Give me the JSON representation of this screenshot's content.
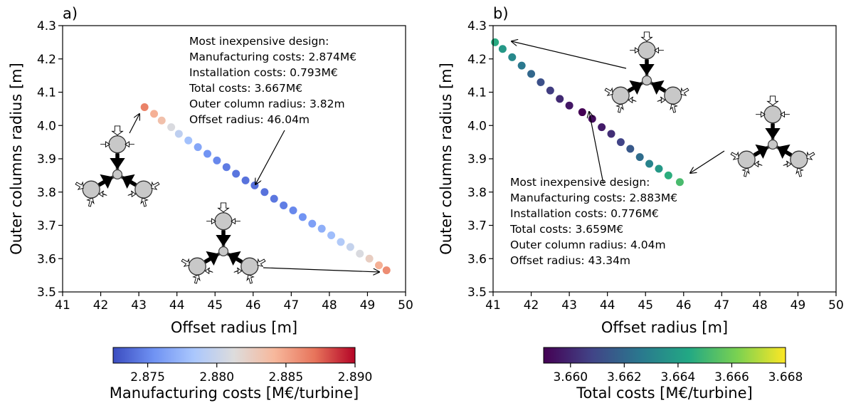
{
  "figure": {
    "panels": [
      {
        "label": "a)",
        "annotation_lines": [
          "Most inexpensive design:",
          "Manufacturing costs: 2.874M€",
          "Installation costs: 0.793M€",
          "Total costs: 3.667M€",
          "Outer column radius: 3.82m",
          "Offset radius: 46.04m"
        ]
      },
      {
        "label": "b)",
        "annotation_lines": [
          "Most inexpensive design:",
          "Manufacturing costs: 2.883M€",
          "Installation costs: 0.776M€",
          "Total costs: 3.659M€",
          "Outer column radius: 4.04m",
          "Offset radius: 43.34m"
        ]
      }
    ]
  },
  "chart_data": [
    {
      "type": "scatter",
      "title": "",
      "xlabel": "Offset radius [m]",
      "ylabel": "Outer columns radius [m]",
      "xlim": [
        41,
        50
      ],
      "ylim": [
        3.5,
        4.3
      ],
      "xticks": [
        "41",
        "42",
        "43",
        "44",
        "45",
        "46",
        "47",
        "48",
        "49",
        "50"
      ],
      "yticks": [
        "3.5",
        "3.6",
        "3.7",
        "3.8",
        "3.9",
        "4.0",
        "4.1",
        "4.2",
        "4.3"
      ],
      "grid": false,
      "colormap": "coolwarm",
      "colorbar": {
        "label": "Manufacturing costs [M€/turbine]",
        "range": [
          2.8725,
          2.89
        ],
        "ticks": [
          "2.875",
          "2.880",
          "2.885",
          "2.890"
        ],
        "tick_values": [
          2.875,
          2.88,
          2.885,
          2.89
        ],
        "colors": [
          "#3b4cc0",
          "#6f92f3",
          "#aac7fd",
          "#dddcdc",
          "#f7b89c",
          "#e7745b",
          "#b40426"
        ]
      },
      "x": [
        43.15,
        43.4,
        43.6,
        43.85,
        44.05,
        44.3,
        44.55,
        44.8,
        45.05,
        45.3,
        45.55,
        45.8,
        46.04,
        46.3,
        46.55,
        46.8,
        47.05,
        47.3,
        47.55,
        47.8,
        48.05,
        48.3,
        48.55,
        48.8,
        49.05,
        49.3,
        49.5
      ],
      "y": [
        4.055,
        4.035,
        4.015,
        3.995,
        3.975,
        3.955,
        3.935,
        3.915,
        3.895,
        3.875,
        3.855,
        3.835,
        3.82,
        3.8,
        3.78,
        3.76,
        3.745,
        3.725,
        3.705,
        3.69,
        3.67,
        3.65,
        3.635,
        3.615,
        3.6,
        3.58,
        3.565
      ],
      "values": [
        2.8865,
        2.8845,
        2.8835,
        2.881,
        2.8795,
        2.878,
        2.8765,
        2.8755,
        2.875,
        2.8745,
        2.8742,
        2.8741,
        2.874,
        2.8741,
        2.8743,
        2.8746,
        2.875,
        2.8755,
        2.8762,
        2.877,
        2.8778,
        2.8788,
        2.8798,
        2.881,
        2.8825,
        2.8845,
        2.886
      ]
    },
    {
      "type": "scatter",
      "title": "",
      "xlabel": "Offset radius [m]",
      "ylabel": "Outer columns radius [m]",
      "xlim": [
        41,
        50
      ],
      "ylim": [
        3.5,
        4.3
      ],
      "xticks": [
        "41",
        "42",
        "43",
        "44",
        "45",
        "46",
        "47",
        "48",
        "49",
        "50"
      ],
      "yticks": [
        "3.5",
        "3.6",
        "3.7",
        "3.8",
        "3.9",
        "4.0",
        "4.1",
        "4.2",
        "4.3"
      ],
      "grid": false,
      "colormap": "viridis",
      "colorbar": {
        "label": "Total costs [M€/turbine]",
        "range": [
          3.659,
          3.668
        ],
        "ticks": [
          "3.660",
          "3.662",
          "3.664",
          "3.666",
          "3.668"
        ],
        "tick_values": [
          3.66,
          3.662,
          3.664,
          3.666,
          3.668
        ],
        "colors": [
          "#440154",
          "#414487",
          "#2a788e",
          "#22a884",
          "#7ad151",
          "#fde725"
        ]
      },
      "x": [
        41.05,
        41.25,
        41.5,
        41.75,
        42.0,
        42.25,
        42.5,
        42.75,
        43.0,
        43.34,
        43.6,
        43.85,
        44.1,
        44.35,
        44.6,
        44.85,
        45.1,
        45.35,
        45.6,
        45.9
      ],
      "y": [
        4.25,
        4.23,
        4.205,
        4.18,
        4.155,
        4.13,
        4.105,
        4.08,
        4.06,
        4.04,
        4.02,
        3.995,
        3.975,
        3.95,
        3.93,
        3.905,
        3.885,
        3.87,
        3.85,
        3.83
      ],
      "values": [
        3.6645,
        3.6638,
        3.6632,
        3.6626,
        3.662,
        3.6612,
        3.6606,
        3.6601,
        3.6596,
        3.659,
        3.6593,
        3.6597,
        3.6602,
        3.6608,
        3.6615,
        3.6622,
        3.663,
        3.6638,
        3.6646,
        3.6652
      ]
    }
  ]
}
